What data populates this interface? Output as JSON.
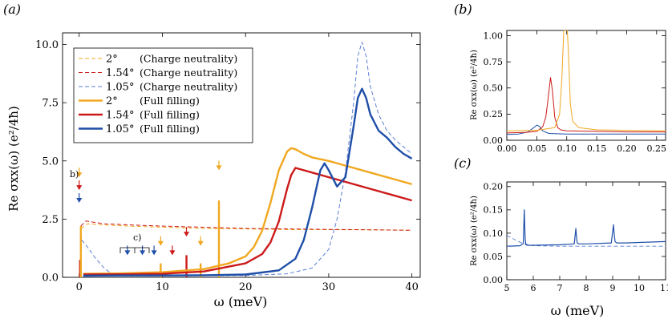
{
  "colors": {
    "orange": "#f0a820",
    "red": "#cc1a1a",
    "blue": "#1f4fa8",
    "blue_dash": "#5b7fd0",
    "axis": "#000000"
  },
  "panels": {
    "a": {
      "label": "(a)",
      "ylabel": "Re σxx(ω)  (e²/4ħ)",
      "xlabel": "ω  (meV)",
      "annot_b": "b)",
      "annot_c": "c)"
    },
    "b": {
      "label": "(b)",
      "ylabel": "Re σxx(ω)  (e²/4ħ)"
    },
    "c": {
      "label": "(c)",
      "ylabel": "Re σxx(ω)  (e²/4ħ)",
      "xlabel": "ω  (meV)"
    }
  },
  "chart_data": [
    {
      "id": "a",
      "type": "line",
      "xlabel": "ω (meV)",
      "ylabel": "Re σxx(ω) (e²/4ħ)",
      "xlim": [
        -2,
        41
      ],
      "ylim": [
        0,
        10.5
      ],
      "xticks": [
        0,
        10,
        20,
        30,
        40
      ],
      "xtick_labels": [
        "0",
        "10",
        "20",
        "30",
        "40"
      ],
      "yticks": [
        0,
        2.5,
        5.0,
        7.5,
        10.0
      ],
      "ytick_labels": [
        "0.0",
        "2.5",
        "5.0",
        "7.5",
        "10.0"
      ],
      "legend_position": "top-left",
      "series": [
        {
          "name": "2° (Charge neutrality)",
          "angle": "2°",
          "desc": "(Charge neutrality)",
          "color": "orange",
          "style": "dashed",
          "width": 1.0,
          "x": [
            0.2,
            1,
            3,
            6,
            10,
            15,
            20,
            25,
            30,
            35,
            40
          ],
          "y": [
            2.1,
            2.3,
            2.25,
            2.2,
            2.15,
            2.1,
            2.08,
            2.05,
            2.05,
            2.04,
            2.02
          ]
        },
        {
          "name": "1.54° (Charge neutrality)",
          "angle": "1.54°",
          "desc": "(Charge neutrality)",
          "color": "red",
          "style": "dashed",
          "width": 1.0,
          "x": [
            0.2,
            0.8,
            1.5,
            3,
            6,
            10,
            15,
            20,
            25,
            30,
            35,
            40
          ],
          "y": [
            2.2,
            2.42,
            2.38,
            2.3,
            2.25,
            2.2,
            2.15,
            2.1,
            2.08,
            2.06,
            2.04,
            2.02
          ]
        },
        {
          "name": "1.05° (Charge neutrality)",
          "angle": "1.05°",
          "desc": "(Charge neutrality)",
          "color": "blue_dash",
          "style": "dashed",
          "width": 1.0,
          "x": [
            0.3,
            1,
            2,
            3,
            4,
            5,
            10,
            15,
            20,
            25,
            28,
            30,
            31,
            32,
            33,
            33.5,
            34,
            34.5,
            35,
            36,
            37,
            38,
            39,
            40
          ],
          "y": [
            1.6,
            1.3,
            0.8,
            0.4,
            0.12,
            0.06,
            0.06,
            0.07,
            0.08,
            0.15,
            0.4,
            1.2,
            2.5,
            4.5,
            7.5,
            9.5,
            10.1,
            9.5,
            8.2,
            7.0,
            6.3,
            5.9,
            5.6,
            5.3
          ]
        },
        {
          "name": "2° (Full filling)",
          "angle": "2°",
          "desc": "(Full filling)",
          "color": "orange",
          "style": "solid",
          "width": 2.4,
          "x": [
            0.5,
            5,
            10,
            15,
            18,
            20,
            21,
            22,
            23,
            24,
            25,
            25.5,
            26,
            27,
            28,
            30,
            32,
            35,
            38,
            40
          ],
          "y": [
            0.15,
            0.17,
            0.22,
            0.35,
            0.6,
            0.9,
            1.3,
            2.0,
            3.2,
            4.6,
            5.4,
            5.55,
            5.5,
            5.3,
            5.15,
            5.0,
            4.8,
            4.5,
            4.2,
            4.0
          ]
        },
        {
          "name": "1.54° (Full filling)",
          "angle": "1.54°",
          "desc": "(Full filling)",
          "color": "red",
          "style": "solid",
          "width": 2.4,
          "x": [
            0.5,
            5,
            10,
            15,
            20,
            22,
            23,
            24,
            25,
            25.5,
            26,
            27,
            28,
            30,
            32,
            35,
            38,
            40
          ],
          "y": [
            0.12,
            0.13,
            0.15,
            0.25,
            0.6,
            1.0,
            1.5,
            2.4,
            3.8,
            4.4,
            4.7,
            4.6,
            4.5,
            4.3,
            4.1,
            3.8,
            3.5,
            3.3
          ]
        },
        {
          "name": "1.05° (Full filling)",
          "angle": "1.05°",
          "desc": "(Full filling)",
          "color": "blue",
          "style": "solid",
          "width": 2.4,
          "x": [
            0.5,
            5,
            10,
            15,
            20,
            24,
            26,
            27,
            28,
            29,
            29.5,
            30,
            31,
            32,
            33,
            33.5,
            34,
            34.5,
            35,
            36,
            37,
            38,
            39,
            40
          ],
          "y": [
            0.07,
            0.08,
            0.08,
            0.09,
            0.12,
            0.3,
            0.8,
            1.6,
            3.0,
            4.6,
            4.9,
            4.6,
            3.9,
            4.3,
            6.5,
            7.7,
            8.1,
            7.7,
            7.0,
            6.3,
            6.0,
            5.6,
            5.3,
            5.1
          ]
        }
      ],
      "spikes": [
        {
          "x": 0.1,
          "height": 0.75,
          "color": "red"
        },
        {
          "x": 0.2,
          "height": 2.2,
          "color": "orange"
        },
        {
          "x": 9.8,
          "height": 0.6,
          "color": "orange"
        },
        {
          "x": 12.9,
          "height": 0.95,
          "color": "red"
        },
        {
          "x": 14.6,
          "height": 0.6,
          "color": "orange"
        },
        {
          "x": 16.8,
          "height": 3.3,
          "color": "orange"
        }
      ],
      "arrows": [
        {
          "x": 0,
          "y": 4.3,
          "color": "orange"
        },
        {
          "x": 0,
          "y": 3.75,
          "color": "red"
        },
        {
          "x": 0,
          "y": 3.2,
          "color": "blue"
        },
        {
          "x": 5.8,
          "y": 0.95,
          "color": "blue"
        },
        {
          "x": 7.6,
          "y": 0.95,
          "color": "blue"
        },
        {
          "x": 9.0,
          "y": 0.95,
          "color": "blue"
        },
        {
          "x": 9.8,
          "y": 1.35,
          "color": "orange"
        },
        {
          "x": 11.2,
          "y": 0.95,
          "color": "red"
        },
        {
          "x": 12.9,
          "y": 1.75,
          "color": "red"
        },
        {
          "x": 14.6,
          "y": 1.35,
          "color": "orange"
        },
        {
          "x": 16.8,
          "y": 4.6,
          "color": "orange"
        }
      ]
    },
    {
      "id": "b",
      "type": "line",
      "xlim": [
        0,
        0.265
      ],
      "ylim": [
        0,
        1.05
      ],
      "xticks": [
        0,
        0.05,
        0.1,
        0.15,
        0.2,
        0.25
      ],
      "xtick_labels": [
        "0.00",
        "0.05",
        "0.10",
        "0.15",
        "0.20",
        "0.25"
      ],
      "yticks": [
        0,
        0.25,
        0.5,
        0.75,
        1.0
      ],
      "ytick_labels": [
        "0.00",
        "0.25",
        "0.50",
        "0.75",
        "1.00"
      ],
      "series": [
        {
          "name": "1.05°",
          "color": "blue",
          "style": "solid",
          "width": 1.0,
          "x": [
            0,
            0.02,
            0.035,
            0.045,
            0.05,
            0.055,
            0.06,
            0.07,
            0.1,
            0.15,
            0.2,
            0.265
          ],
          "y": [
            0.055,
            0.06,
            0.08,
            0.12,
            0.145,
            0.13,
            0.09,
            0.065,
            0.06,
            0.06,
            0.06,
            0.06
          ]
        },
        {
          "name": "1.54°",
          "color": "red",
          "style": "solid",
          "width": 1.0,
          "x": [
            0,
            0.03,
            0.05,
            0.06,
            0.065,
            0.07,
            0.073,
            0.076,
            0.08,
            0.085,
            0.09,
            0.1,
            0.15,
            0.2,
            0.265
          ],
          "y": [
            0.07,
            0.075,
            0.085,
            0.13,
            0.22,
            0.45,
            0.6,
            0.48,
            0.22,
            0.12,
            0.1,
            0.09,
            0.085,
            0.08,
            0.08
          ]
        },
        {
          "name": "2°",
          "color": "orange",
          "style": "solid",
          "width": 1.0,
          "x": [
            0,
            0.05,
            0.08,
            0.088,
            0.092,
            0.095,
            0.097,
            0.099,
            0.101,
            0.103,
            0.106,
            0.11,
            0.12,
            0.15,
            0.2,
            0.265
          ],
          "y": [
            0.09,
            0.095,
            0.12,
            0.25,
            0.6,
            1.05,
            1.05,
            1.05,
            1.05,
            0.8,
            0.35,
            0.18,
            0.12,
            0.1,
            0.095,
            0.09
          ]
        }
      ]
    },
    {
      "id": "c",
      "type": "line",
      "xlim": [
        5,
        11
      ],
      "ylim": [
        0,
        0.21
      ],
      "xticks": [
        5,
        6,
        7,
        8,
        9,
        10,
        11
      ],
      "xtick_labels": [
        "5",
        "6",
        "7",
        "8",
        "9",
        "10",
        "11"
      ],
      "yticks": [
        0,
        0.05,
        0.1,
        0.15,
        0.2
      ],
      "ytick_labels": [
        "0.00",
        "0.05",
        "0.10",
        "0.15",
        "0.20"
      ],
      "series": [
        {
          "name": "1.05° (Charge neutrality)",
          "color": "blue_dash",
          "style": "dashed",
          "width": 0.9,
          "x": [
            5,
            5.3,
            5.6,
            6,
            7,
            8,
            9,
            10,
            11
          ],
          "y": [
            0.095,
            0.086,
            0.078,
            0.073,
            0.072,
            0.072,
            0.072,
            0.072,
            0.072
          ]
        },
        {
          "name": "1.05° (Full filling)",
          "color": "blue",
          "style": "solid",
          "width": 1.2,
          "x": [
            5,
            5.5,
            5.62,
            5.66,
            5.69,
            5.72,
            5.78,
            6,
            7,
            7.55,
            7.61,
            7.63,
            7.66,
            7.72,
            8,
            8.95,
            9.03,
            9.06,
            9.09,
            9.15,
            9.5,
            10,
            11
          ],
          "y": [
            0.072,
            0.073,
            0.078,
            0.15,
            0.09,
            0.075,
            0.074,
            0.074,
            0.075,
            0.077,
            0.11,
            0.094,
            0.079,
            0.077,
            0.077,
            0.079,
            0.118,
            0.096,
            0.082,
            0.079,
            0.079,
            0.08,
            0.082
          ]
        }
      ]
    }
  ]
}
